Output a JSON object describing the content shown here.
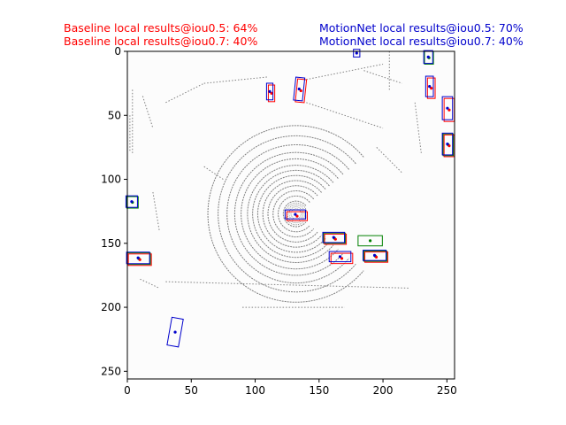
{
  "header": {
    "baseline_line1": "Baseline local results@iou0.5: 64%",
    "baseline_line2": "Baseline local results@iou0.7: 40%",
    "motionnet_line1": "MotionNet local results@iou0.5: 70%",
    "motionnet_line2": "MotionNet local results@iou0.7: 40%"
  },
  "colors": {
    "baseline": "#ff0000",
    "motionnet": "#0000cc",
    "ground_truth": "#008000",
    "points": "#808080"
  },
  "chart_data": {
    "type": "scatter",
    "title": "",
    "xlabel": "",
    "ylabel": "",
    "xlim": [
      0,
      256
    ],
    "ylim": [
      256,
      0
    ],
    "x_ticks": [
      0,
      50,
      100,
      150,
      200,
      250
    ],
    "y_ticks": [
      0,
      50,
      100,
      150,
      200,
      250
    ],
    "grid": false,
    "ego_center": [
      132,
      127
    ],
    "ring_radii": [
      10,
      14,
      18,
      22,
      26,
      30,
      34,
      38,
      43,
      48,
      54,
      61,
      69
    ],
    "boxes": [
      {
        "cx": 180,
        "cy": 2,
        "w": 5,
        "h": 6,
        "angle": 0,
        "colors": [
          "motionnet"
        ]
      },
      {
        "cx": 236,
        "cy": 5,
        "w": 7,
        "h": 10,
        "angle": 0,
        "colors": [
          "ground_truth",
          "motionnet"
        ]
      },
      {
        "cx": 237,
        "cy": 28,
        "w": 6,
        "h": 16,
        "angle": 0,
        "colors": [
          "baseline",
          "motionnet"
        ]
      },
      {
        "cx": 112,
        "cy": 32,
        "w": 5,
        "h": 13,
        "angle": 0,
        "colors": [
          "baseline",
          "motionnet"
        ]
      },
      {
        "cx": 135,
        "cy": 30,
        "w": 7,
        "h": 18,
        "angle": 6,
        "colors": [
          "baseline",
          "motionnet"
        ]
      },
      {
        "cx": 251,
        "cy": 45,
        "w": 8,
        "h": 18,
        "angle": 0,
        "colors": [
          "baseline",
          "motionnet"
        ]
      },
      {
        "cx": 251,
        "cy": 73,
        "w": 8,
        "h": 17,
        "angle": 0,
        "colors": [
          "ground_truth",
          "baseline",
          "motionnet"
        ]
      },
      {
        "cx": 4,
        "cy": 118,
        "w": 9,
        "h": 9,
        "angle": 0,
        "colors": [
          "ground_truth",
          "motionnet"
        ]
      },
      {
        "cx": 132,
        "cy": 128,
        "w": 16,
        "h": 7,
        "angle": 0,
        "colors": [
          "baseline",
          "motionnet"
        ]
      },
      {
        "cx": 162,
        "cy": 146,
        "w": 17,
        "h": 8,
        "angle": 0,
        "colors": [
          "ground_truth",
          "baseline",
          "motionnet"
        ]
      },
      {
        "cx": 190,
        "cy": 148,
        "w": 19,
        "h": 8,
        "angle": 0,
        "colors": [
          "ground_truth"
        ]
      },
      {
        "cx": 167,
        "cy": 161,
        "w": 17,
        "h": 8,
        "angle": 0,
        "colors": [
          "baseline",
          "motionnet"
        ]
      },
      {
        "cx": 194,
        "cy": 160,
        "w": 18,
        "h": 8,
        "angle": 0,
        "colors": [
          "ground_truth",
          "baseline",
          "motionnet"
        ]
      },
      {
        "cx": 9,
        "cy": 162,
        "w": 18,
        "h": 9,
        "angle": 0,
        "colors": [
          "ground_truth",
          "baseline",
          "motionnet"
        ]
      },
      {
        "cx": 38,
        "cy": 220,
        "w": 9,
        "h": 22,
        "angle": 10,
        "colors": [
          "motionnet"
        ]
      }
    ]
  }
}
